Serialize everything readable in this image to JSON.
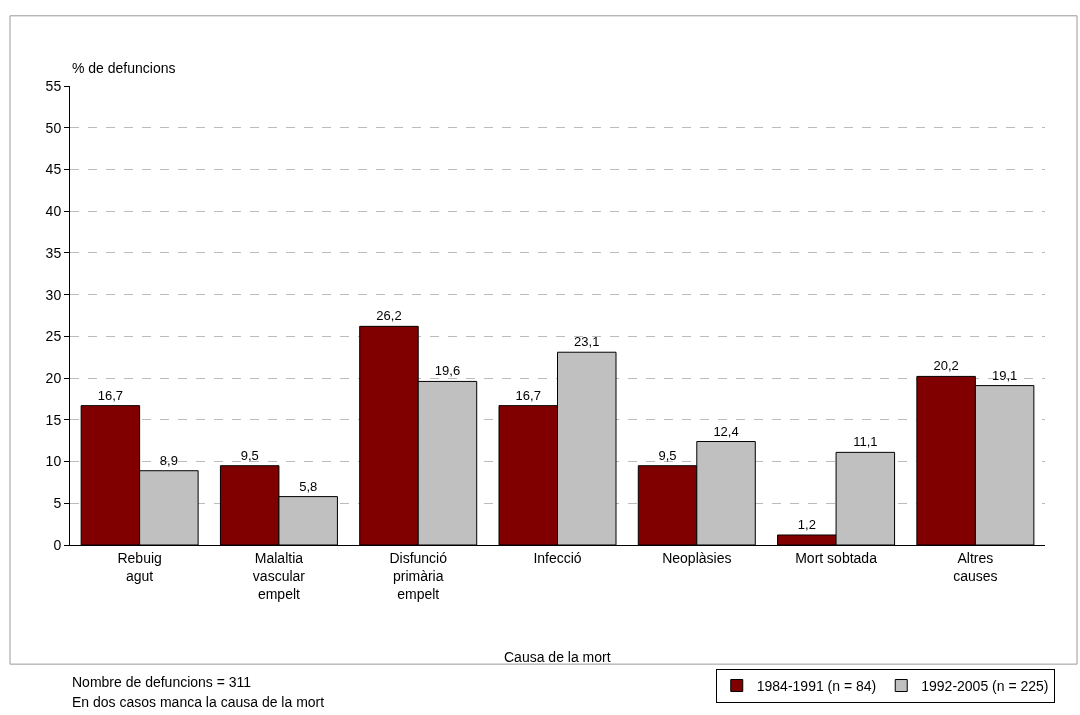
{
  "chart_data": {
    "type": "bar",
    "ylabel": "% de defuncions",
    "xlabel": "Causa de la mort",
    "categories": [
      "Rebuig\nagut",
      "Malaltia\nvascular\nempelt",
      "Disfunció\nprimària\nempelt",
      "Infecció",
      "Neoplàsies",
      "Mort sobtada",
      "Altres\ncauses"
    ],
    "series": [
      {
        "name": "1984-1991 (n = 84)",
        "color": "#800000",
        "values": [
          16.7,
          9.5,
          26.2,
          16.7,
          9.5,
          1.2,
          20.2
        ],
        "value_labels": [
          "16,7",
          "9,5",
          "26,2",
          "16,7",
          "9,5",
          "1,2",
          "20,2"
        ]
      },
      {
        "name": "1992-2005 (n = 225)",
        "color": "#c0c0c0",
        "values": [
          8.9,
          5.8,
          19.6,
          23.1,
          12.4,
          11.1,
          19.1
        ],
        "value_labels": [
          "8,9",
          "5,8",
          "19,6",
          "23,1",
          "12,4",
          "11,1",
          "19,1"
        ]
      }
    ],
    "ylim": [
      0,
      55
    ],
    "yticks": [
      0,
      5,
      10,
      15,
      20,
      25,
      30,
      35,
      40,
      45,
      50,
      55
    ],
    "grid": "y",
    "legend": "bottom right",
    "annotations": [
      "Nombre de defuncions = 311",
      "En dos casos manca la causa de la mort"
    ]
  }
}
